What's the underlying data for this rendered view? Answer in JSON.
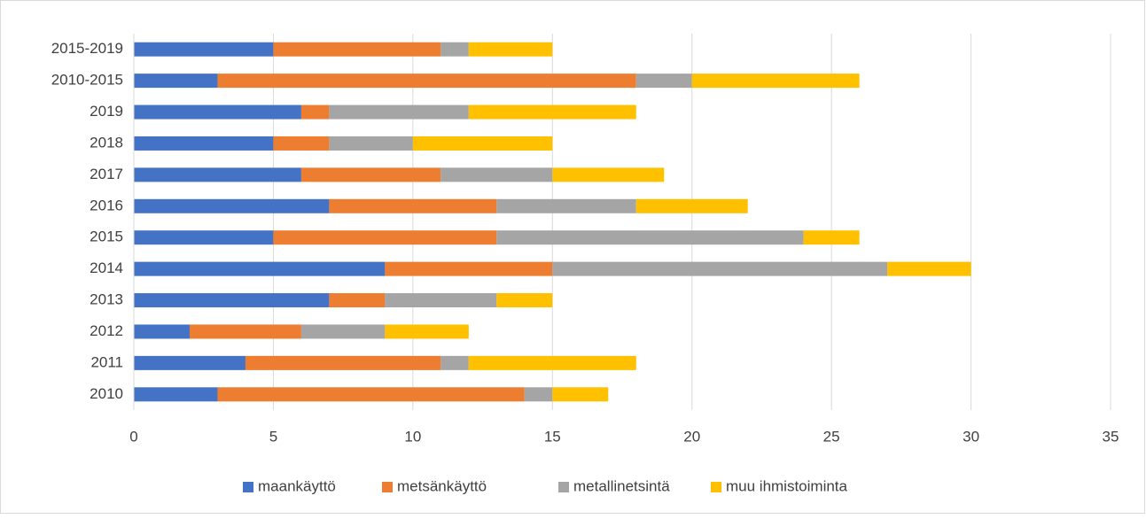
{
  "chart_data": {
    "type": "bar",
    "orientation": "horizontal",
    "stacked": true,
    "categories": [
      "2010",
      "2011",
      "2012",
      "2013",
      "2014",
      "2015",
      "2016",
      "2017",
      "2018",
      "2019",
      "2010-2015",
      "2015-2019"
    ],
    "series": [
      {
        "name": "maankäyttö",
        "color": "#4472c4",
        "values": [
          3,
          4,
          2,
          7,
          9,
          5,
          7,
          6,
          5,
          6,
          3,
          5
        ]
      },
      {
        "name": "metsänkäyttö",
        "color": "#ed7d31",
        "values": [
          11,
          7,
          4,
          2,
          6,
          8,
          6,
          5,
          2,
          1,
          15,
          6
        ]
      },
      {
        "name": "metallinetsintä",
        "color": "#a5a5a5",
        "values": [
          1,
          1,
          3,
          4,
          12,
          11,
          5,
          4,
          3,
          5,
          2,
          1
        ]
      },
      {
        "name": "muu ihmistoiminta",
        "color": "#ffc000",
        "values": [
          2,
          6,
          3,
          2,
          3,
          2,
          4,
          4,
          5,
          6,
          6,
          3
        ]
      }
    ],
    "xlim": [
      0,
      35
    ],
    "xticks": [
      0,
      5,
      10,
      15,
      20,
      25,
      30,
      35
    ],
    "grid": true,
    "legend": "bottom"
  }
}
